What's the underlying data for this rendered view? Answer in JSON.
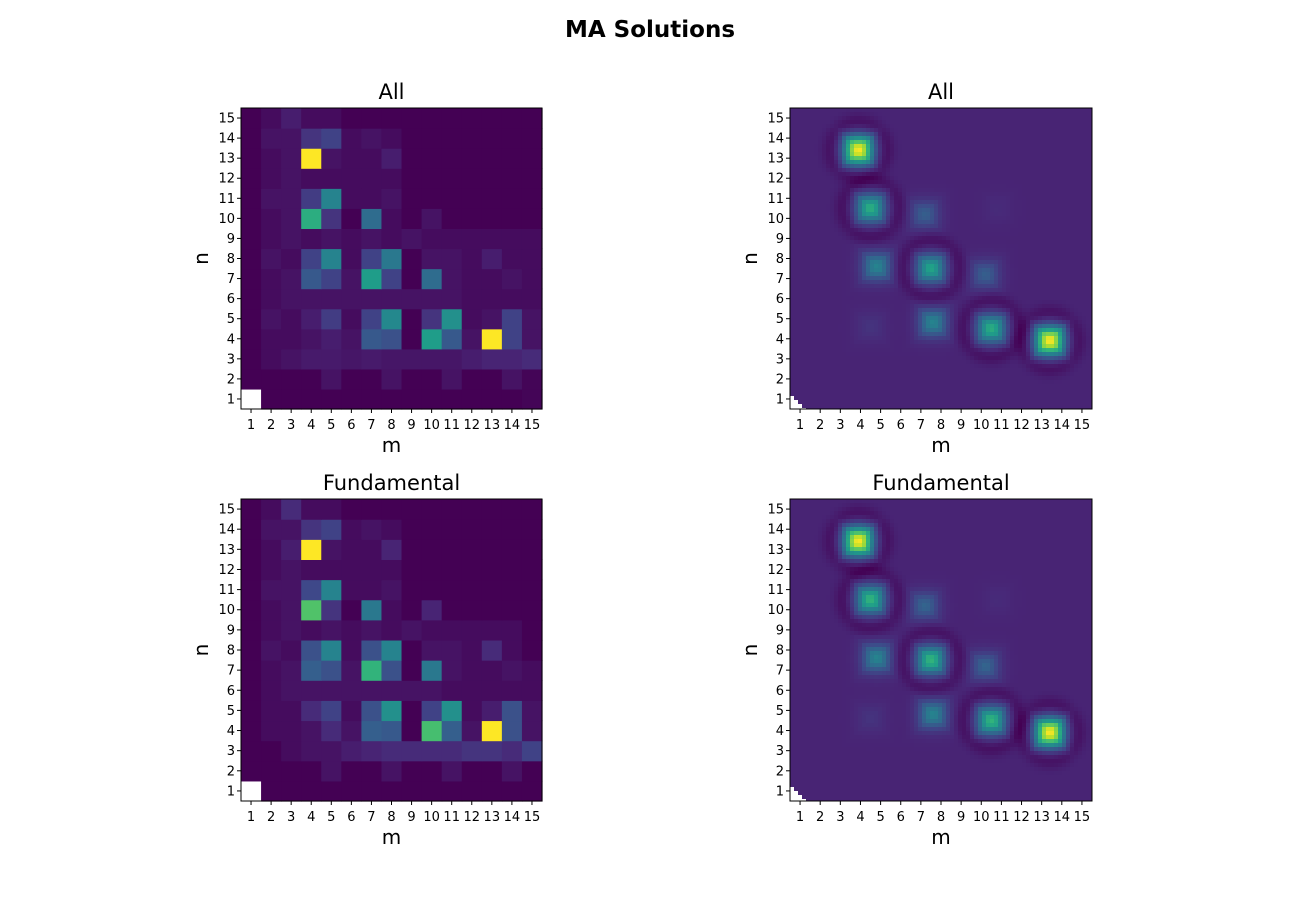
{
  "figure": {
    "suptitle": "MA Solutions"
  },
  "colormap": {
    "name": "viridis",
    "stops": [
      "#440154",
      "#482878",
      "#3e4989",
      "#31688e",
      "#26828e",
      "#1f9e89",
      "#35b779",
      "#6ece58",
      "#b5de2b",
      "#fde725"
    ],
    "nan_color": "#ffffff"
  },
  "chart_data": [
    {
      "type": "heatmap",
      "title": "All",
      "xlabel": "m",
      "ylabel": "n",
      "x": [
        1,
        2,
        3,
        4,
        5,
        6,
        7,
        8,
        9,
        10,
        11,
        12,
        13,
        14,
        15
      ],
      "y": [
        1,
        2,
        3,
        4,
        5,
        6,
        7,
        8,
        9,
        10,
        11,
        12,
        13,
        14,
        15
      ],
      "interpolation": "nearest",
      "z_range": [
        0,
        1
      ],
      "z": [
        [
          null,
          0,
          0,
          0,
          0,
          0,
          0,
          0,
          0,
          0,
          0,
          0,
          0,
          0,
          0.01
        ],
        [
          0,
          0,
          0,
          0,
          0.05,
          0,
          0,
          0.05,
          0,
          0,
          0.05,
          0,
          0,
          0.05,
          0.01
        ],
        [
          0,
          0.03,
          0.05,
          0.07,
          0.07,
          0.06,
          0.07,
          0.06,
          0.06,
          0.06,
          0.06,
          0.08,
          0.1,
          0.1,
          0.12
        ],
        [
          0,
          0.03,
          0.03,
          0.05,
          0.08,
          0.05,
          0.28,
          0.25,
          0,
          0.55,
          0.28,
          0.05,
          1,
          0.2,
          0.05
        ],
        [
          0,
          0.05,
          0.03,
          0.08,
          0.18,
          0.03,
          0.2,
          0.47,
          0,
          0.15,
          0.5,
          0.03,
          0.05,
          0.2,
          0.05
        ],
        [
          0,
          0.03,
          0.05,
          0.05,
          0.05,
          0.05,
          0.05,
          0.05,
          0.05,
          0.05,
          0.05,
          0.03,
          0.03,
          0.03,
          0.03
        ],
        [
          0,
          0.03,
          0.05,
          0.28,
          0.2,
          0.05,
          0.55,
          0.2,
          0,
          0.35,
          0.05,
          0.03,
          0.03,
          0.05,
          0.03
        ],
        [
          0,
          0.05,
          0.03,
          0.2,
          0.45,
          0.03,
          0.2,
          0.4,
          0,
          0.05,
          0.05,
          0.03,
          0.08,
          0.03,
          0.03
        ],
        [
          0,
          0.03,
          0.05,
          0.03,
          0.05,
          0.03,
          0.05,
          0.03,
          0.05,
          0.03,
          0.03,
          0.03,
          0.03,
          0.03,
          0.03
        ],
        [
          0,
          0.03,
          0.05,
          0.62,
          0.15,
          0,
          0.35,
          0.03,
          0,
          0.05,
          0,
          0,
          0,
          0,
          0
        ],
        [
          0,
          0.05,
          0.05,
          0.18,
          0.45,
          0.03,
          0.03,
          0.05,
          0,
          0,
          0,
          0,
          0,
          0,
          0
        ],
        [
          0,
          0.03,
          0.05,
          0.03,
          0.03,
          0.03,
          0.03,
          0.03,
          0,
          0,
          0,
          0,
          0,
          0,
          0
        ],
        [
          0,
          0.03,
          0.05,
          1,
          0.05,
          0.03,
          0.03,
          0.08,
          0,
          0,
          0,
          0,
          0,
          0,
          0
        ],
        [
          0,
          0.05,
          0.05,
          0.15,
          0.2,
          0.03,
          0.05,
          0.03,
          0,
          0,
          0,
          0,
          0,
          0,
          0
        ],
        [
          0,
          0.03,
          0.08,
          0.03,
          0.03,
          0,
          0,
          0,
          0,
          0,
          0,
          0,
          0,
          0,
          0
        ]
      ]
    },
    {
      "type": "heatmap",
      "title": "All",
      "xlabel": "m",
      "ylabel": "n",
      "x": [
        1,
        2,
        3,
        4,
        5,
        6,
        7,
        8,
        9,
        10,
        11,
        12,
        13,
        14,
        15
      ],
      "y": [
        1,
        2,
        3,
        4,
        5,
        6,
        7,
        8,
        9,
        10,
        11,
        12,
        13,
        14,
        15
      ],
      "interpolation": "smooth",
      "z_range": [
        0,
        1
      ],
      "z": [
        [
          null,
          0.1,
          0.1,
          0.1,
          0.1,
          0.1,
          0.1,
          0.1,
          0.1,
          0.1,
          0.1,
          0.1,
          0.1,
          0.1,
          0.1
        ],
        [
          0.1,
          0.1,
          0.1,
          0.1,
          0.1,
          0.1,
          0.1,
          0.1,
          0.1,
          0.1,
          0.1,
          0.1,
          0.1,
          0.1,
          0.1
        ],
        [
          0.1,
          0.1,
          0.1,
          0.1,
          0.1,
          0.1,
          0.1,
          0.1,
          0.1,
          0.1,
          0.1,
          0.1,
          0.1,
          0.1,
          0.1
        ],
        [
          0.1,
          0.1,
          0.1,
          0.1,
          0.2,
          0.12,
          0.1,
          0.1,
          0.1,
          0.1,
          0.1,
          0.1,
          0.1,
          0.1,
          0.1
        ],
        [
          0.1,
          0.1,
          0.1,
          0.1,
          0.1,
          0.1,
          0.1,
          0.1,
          0.1,
          0.1,
          0.1,
          0.1,
          0.1,
          0.1,
          0.1
        ],
        [
          0.1,
          0.1,
          0.1,
          0.1,
          0.1,
          0.1,
          0.1,
          0.1,
          0.1,
          0.1,
          0.1,
          0.1,
          0.1,
          0.1,
          0.1
        ],
        [
          0.1,
          0.1,
          0.1,
          0.1,
          0.1,
          0.1,
          0.1,
          0.1,
          0.1,
          0.1,
          0.1,
          0.1,
          0.1,
          0.1,
          0.1
        ],
        [
          0.1,
          0.1,
          0.1,
          0.1,
          0.1,
          0.1,
          0.1,
          0.1,
          0.1,
          0.1,
          0.1,
          0.1,
          0.1,
          0.1,
          0.1
        ],
        [
          0.1,
          0.1,
          0.1,
          0.1,
          0.1,
          0.1,
          0.1,
          0.1,
          0.1,
          0.1,
          0.1,
          0.1,
          0.1,
          0.1,
          0.1
        ],
        [
          0.1,
          0.1,
          0.1,
          0.1,
          0.1,
          0.1,
          0.1,
          0.1,
          0.1,
          0.1,
          0.1,
          0.1,
          0.1,
          0.1,
          0.1
        ],
        [
          0.1,
          0.1,
          0.1,
          0.1,
          0.1,
          0.1,
          0.1,
          0.1,
          0.1,
          0.1,
          0.1,
          0.1,
          0.1,
          0.1,
          0.1
        ],
        [
          0.1,
          0.1,
          0.1,
          0.1,
          0.1,
          0.1,
          0.1,
          0.1,
          0.1,
          0.1,
          0.1,
          0.1,
          0.1,
          0.1,
          0.1
        ],
        [
          0.1,
          0.1,
          0.1,
          0.1,
          0.1,
          0.1,
          0.1,
          0.1,
          0.1,
          0.1,
          0.1,
          0.1,
          0.1,
          0.1,
          0.1
        ],
        [
          0.1,
          0.1,
          0.1,
          0.1,
          0.1,
          0.1,
          0.1,
          0.1,
          0.1,
          0.1,
          0.1,
          0.1,
          0.1,
          0.1,
          0.1
        ],
        [
          0.1,
          0.1,
          0.1,
          0.1,
          0.1,
          0.1,
          0.1,
          0.1,
          0.1,
          0.1,
          0.1,
          0.1,
          0.1,
          0.1,
          0.1
        ]
      ],
      "peaks": [
        {
          "m": 3.9,
          "n": 13.4,
          "value": 1.0
        },
        {
          "m": 4.5,
          "n": 10.5,
          "value": 0.62
        },
        {
          "m": 7.5,
          "n": 7.5,
          "value": 0.58
        },
        {
          "m": 10.5,
          "n": 4.5,
          "value": 0.62
        },
        {
          "m": 13.4,
          "n": 3.9,
          "value": 1.0
        },
        {
          "m": 4.8,
          "n": 7.6,
          "value": 0.45
        },
        {
          "m": 7.6,
          "n": 4.8,
          "value": 0.45
        },
        {
          "m": 7.2,
          "n": 10.2,
          "value": 0.3
        },
        {
          "m": 10.2,
          "n": 7.2,
          "value": 0.3
        },
        {
          "m": 4.5,
          "n": 4.6,
          "value": 0.15
        },
        {
          "m": 10.8,
          "n": 10.5,
          "value": 0.12
        }
      ]
    },
    {
      "type": "heatmap",
      "title": "Fundamental",
      "xlabel": "m",
      "ylabel": "n",
      "x": [
        1,
        2,
        3,
        4,
        5,
        6,
        7,
        8,
        9,
        10,
        11,
        12,
        13,
        14,
        15
      ],
      "y": [
        1,
        2,
        3,
        4,
        5,
        6,
        7,
        8,
        9,
        10,
        11,
        12,
        13,
        14,
        15
      ],
      "interpolation": "nearest",
      "z_range": [
        0,
        1
      ],
      "z": [
        [
          null,
          0,
          0,
          0,
          0,
          0,
          0,
          0,
          0,
          0,
          0,
          0,
          0,
          0,
          0
        ],
        [
          0,
          0,
          0,
          0,
          0.05,
          0,
          0,
          0.05,
          0,
          0,
          0.05,
          0,
          0,
          0.05,
          0
        ],
        [
          0,
          0,
          0.03,
          0.05,
          0.05,
          0.08,
          0.1,
          0.12,
          0.12,
          0.12,
          0.12,
          0.15,
          0.15,
          0.12,
          0.2
        ],
        [
          0,
          0.03,
          0.03,
          0.05,
          0.12,
          0.05,
          0.3,
          0.28,
          0,
          0.7,
          0.3,
          0.05,
          1,
          0.25,
          0.05
        ],
        [
          0,
          0.03,
          0.03,
          0.12,
          0.2,
          0.03,
          0.25,
          0.5,
          0,
          0.2,
          0.5,
          0.03,
          0.08,
          0.25,
          0.05
        ],
        [
          0,
          0.03,
          0.05,
          0.05,
          0.05,
          0.05,
          0.05,
          0.05,
          0.05,
          0.05,
          0.03,
          0.03,
          0.03,
          0.03,
          0.03
        ],
        [
          0,
          0.03,
          0.05,
          0.3,
          0.25,
          0.05,
          0.65,
          0.25,
          0,
          0.4,
          0.05,
          0.03,
          0.03,
          0.05,
          0.03
        ],
        [
          0,
          0.05,
          0.03,
          0.25,
          0.45,
          0.03,
          0.25,
          0.45,
          0,
          0.05,
          0.05,
          0.03,
          0.12,
          0.03,
          0
        ],
        [
          0,
          0.03,
          0.05,
          0.03,
          0.05,
          0.03,
          0.05,
          0.03,
          0.05,
          0.03,
          0.03,
          0.03,
          0.03,
          0.03,
          0
        ],
        [
          0,
          0.03,
          0.05,
          0.72,
          0.15,
          0,
          0.4,
          0.03,
          0,
          0.1,
          0,
          0,
          0,
          0,
          0
        ],
        [
          0,
          0.05,
          0.05,
          0.22,
          0.45,
          0.03,
          0.03,
          0.05,
          0,
          0,
          0,
          0,
          0,
          0,
          0
        ],
        [
          0,
          0.03,
          0.05,
          0.03,
          0.03,
          0.03,
          0.03,
          0.03,
          0,
          0,
          0,
          0,
          0,
          0,
          0
        ],
        [
          0,
          0.03,
          0.08,
          1,
          0.05,
          0.03,
          0.03,
          0.1,
          0,
          0,
          0,
          0,
          0,
          0,
          0
        ],
        [
          0,
          0.05,
          0.05,
          0.15,
          0.2,
          0.03,
          0.05,
          0.03,
          0,
          0,
          0,
          0,
          0,
          0,
          0
        ],
        [
          0,
          0.03,
          0.12,
          0.03,
          0.03,
          0,
          0,
          0,
          0,
          0,
          0,
          0,
          0,
          0,
          0
        ]
      ]
    },
    {
      "type": "heatmap",
      "title": "Fundamental",
      "xlabel": "m",
      "ylabel": "n",
      "x": [
        1,
        2,
        3,
        4,
        5,
        6,
        7,
        8,
        9,
        10,
        11,
        12,
        13,
        14,
        15
      ],
      "y": [
        1,
        2,
        3,
        4,
        5,
        6,
        7,
        8,
        9,
        10,
        11,
        12,
        13,
        14,
        15
      ],
      "interpolation": "smooth",
      "z_range": [
        0,
        1
      ],
      "peaks": [
        {
          "m": 3.9,
          "n": 13.4,
          "value": 1.0
        },
        {
          "m": 4.5,
          "n": 10.5,
          "value": 0.65
        },
        {
          "m": 7.5,
          "n": 7.5,
          "value": 0.65
        },
        {
          "m": 10.5,
          "n": 4.5,
          "value": 0.65
        },
        {
          "m": 13.4,
          "n": 3.9,
          "value": 1.0
        },
        {
          "m": 4.8,
          "n": 7.6,
          "value": 0.45
        },
        {
          "m": 7.6,
          "n": 4.8,
          "value": 0.45
        },
        {
          "m": 7.2,
          "n": 10.2,
          "value": 0.32
        },
        {
          "m": 10.2,
          "n": 7.2,
          "value": 0.32
        },
        {
          "m": 4.5,
          "n": 4.6,
          "value": 0.15
        },
        {
          "m": 10.8,
          "n": 10.5,
          "value": 0.12
        }
      ]
    }
  ]
}
